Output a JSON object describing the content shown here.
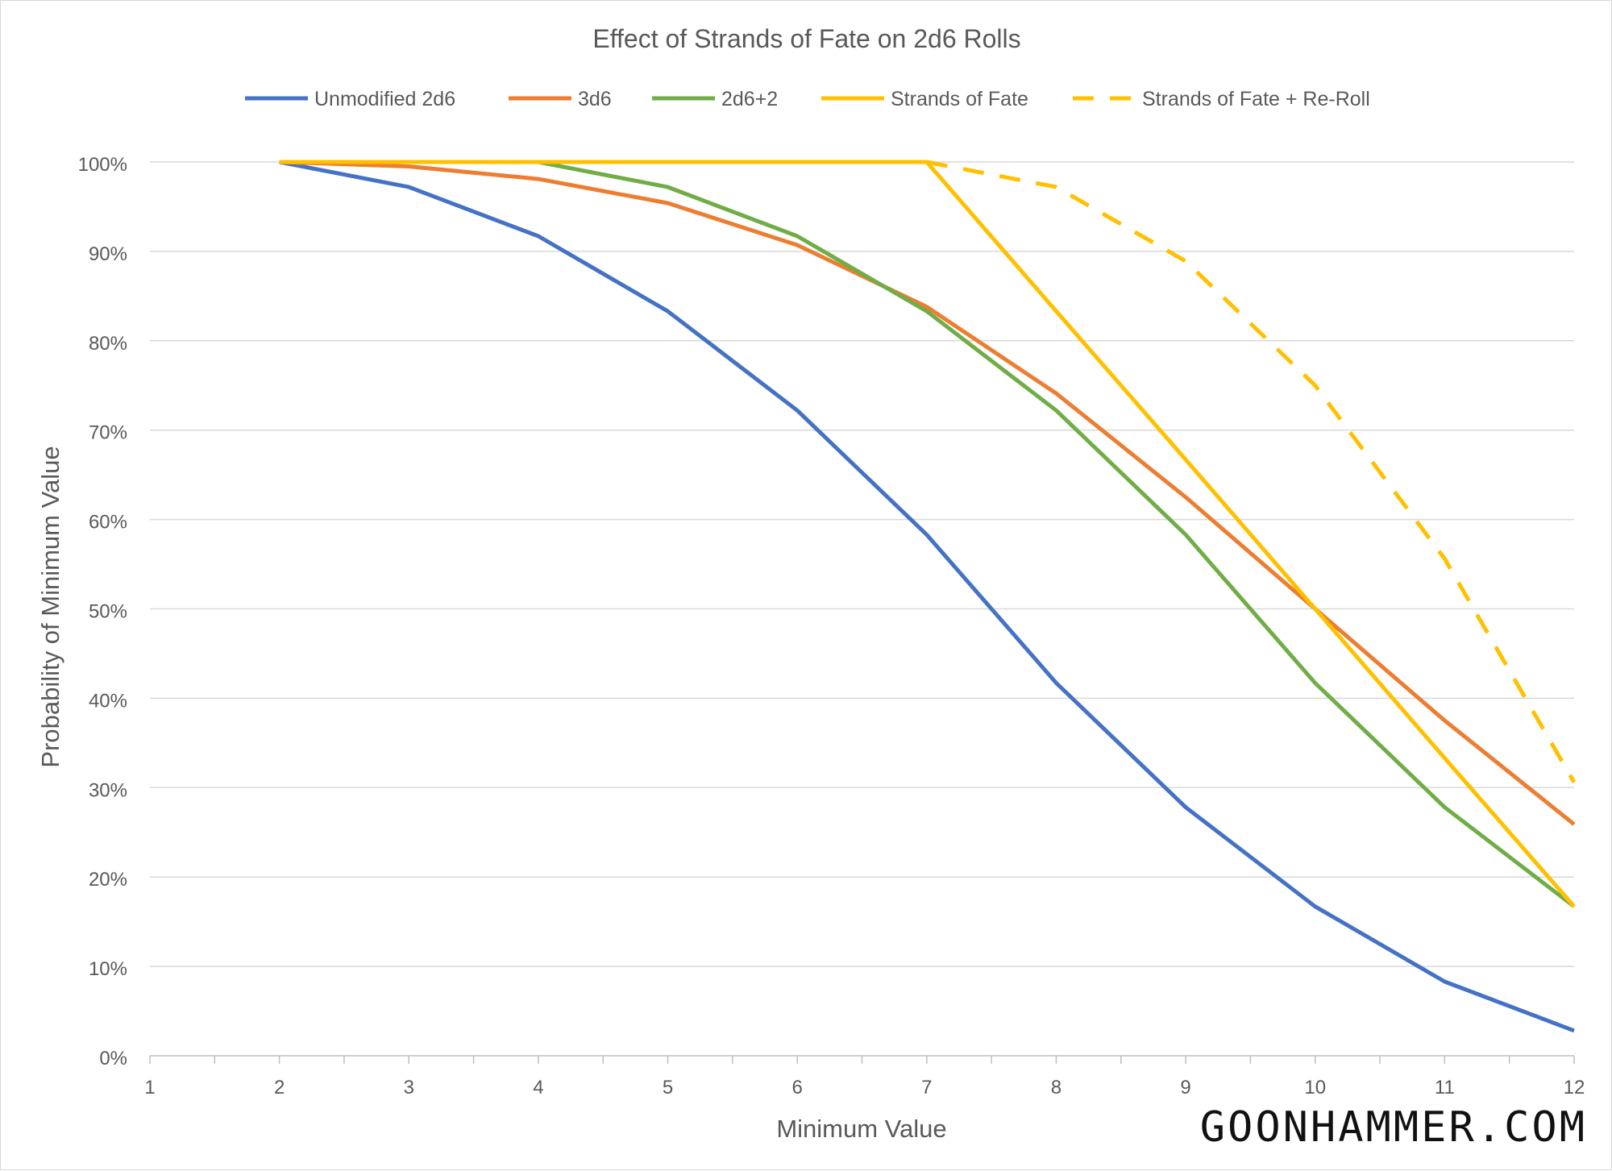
{
  "chart_data": {
    "type": "line",
    "title": "Effect of Strands of Fate on 2d6 Rolls",
    "xlabel": "Minimum Value",
    "ylabel": "Probability of Minimum Value",
    "x": [
      1,
      2,
      3,
      4,
      5,
      6,
      7,
      8,
      9,
      10,
      11,
      12
    ],
    "xlim": [
      1,
      12
    ],
    "ylim": [
      0,
      100
    ],
    "yticks": [
      "0%",
      "10%",
      "20%",
      "30%",
      "40%",
      "50%",
      "60%",
      "70%",
      "80%",
      "90%",
      "100%"
    ],
    "xticks": [
      "1",
      "2",
      "3",
      "4",
      "5",
      "6",
      "7",
      "8",
      "9",
      "10",
      "11",
      "12"
    ],
    "grid": true,
    "legend_position": "top",
    "series": [
      {
        "name": "Unmodified 2d6",
        "color": "#4472c4",
        "dash": "solid",
        "values": [
          null,
          100,
          97.2,
          91.7,
          83.3,
          72.2,
          58.3,
          41.7,
          27.8,
          16.7,
          8.3,
          2.8
        ]
      },
      {
        "name": "3d6",
        "color": "#ed7d31",
        "dash": "solid",
        "values": [
          null,
          100,
          99.5,
          98.1,
          95.4,
          90.7,
          83.8,
          74.1,
          62.5,
          50.0,
          37.5,
          25.9
        ]
      },
      {
        "name": "2d6+2",
        "color": "#70ad47",
        "dash": "solid",
        "values": [
          null,
          null,
          null,
          100,
          97.2,
          91.7,
          83.3,
          72.2,
          58.3,
          41.7,
          27.8,
          16.7
        ]
      },
      {
        "name": "Strands of Fate",
        "color": "#ffc000",
        "dash": "solid",
        "values": [
          null,
          100,
          100,
          100,
          100,
          100,
          100,
          83.3,
          66.7,
          50.0,
          33.3,
          16.7
        ]
      },
      {
        "name": "Strands of Fate + Re-Roll",
        "color": "#ffc000",
        "dash": "dashed",
        "values": [
          null,
          null,
          null,
          null,
          null,
          null,
          100,
          97.2,
          88.9,
          75.0,
          55.6,
          30.6
        ]
      }
    ]
  },
  "watermark": "GOONHAMMER.COM"
}
